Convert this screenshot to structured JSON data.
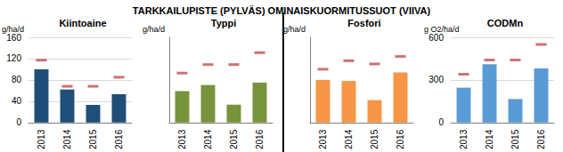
{
  "title": "TARKKAILUPISTE (PYLVÄS) OMINAISKUORMITUSSUOT (VIIVA)",
  "chart_data": [
    {
      "type": "bar",
      "title": "Kiintoaine",
      "ylabel": "g/ha/d",
      "categories": [
        "2013",
        "2014",
        "2015",
        "2016"
      ],
      "series": [
        {
          "type": "bar",
          "color": "#1f4e79",
          "values": [
            100,
            62,
            33,
            53
          ]
        },
        {
          "type": "scatter",
          "marker": "dash",
          "color": "#c0504d",
          "values": [
            117,
            68,
            68,
            85
          ]
        }
      ],
      "ylim": [
        0,
        160
      ],
      "yticks": [
        0,
        40,
        80,
        120,
        160
      ],
      "grid": true
    },
    {
      "type": "bar",
      "title": "Typpi",
      "ylabel": "g/ha/d",
      "categories": [
        "2013",
        "2014",
        "2015",
        "2016"
      ],
      "series": [
        {
          "type": "bar",
          "color": "#77933c",
          "values": [
            9.2,
            11,
            5.2,
            11.7
          ]
        },
        {
          "type": "scatter",
          "marker": "dash",
          "color": "#c0504d",
          "values": [
            14.5,
            17,
            17,
            20.5
          ]
        }
      ],
      "ylim": [
        0,
        25
      ],
      "grid": false,
      "tick_labels": "x"
    },
    {
      "type": "bar",
      "title": "Fosfori",
      "ylabel": "g/ha/d",
      "categories": [
        "2013",
        "2014",
        "2015",
        "2016"
      ],
      "series": [
        {
          "type": "bar",
          "color": "#f79646",
          "values": [
            0.4,
            0.39,
            0.21,
            0.47
          ]
        },
        {
          "type": "scatter",
          "marker": "dash",
          "color": "#c0504d",
          "values": [
            0.5,
            0.58,
            0.55,
            0.62
          ]
        }
      ],
      "ylim": [
        0,
        0.8
      ],
      "grid": false,
      "tick_labels": "x"
    },
    {
      "type": "bar",
      "title": "CODMn",
      "ylabel": "g O2/ha/d",
      "categories": [
        "2013",
        "2014",
        "2015",
        "2016"
      ],
      "series": [
        {
          "type": "bar",
          "color": "#5b9bd5",
          "values": [
            245,
            410,
            165,
            380
          ]
        },
        {
          "type": "scatter",
          "marker": "dash",
          "color": "#c0504d",
          "values": [
            340,
            440,
            440,
            550
          ]
        }
      ],
      "ylim": [
        0,
        600
      ],
      "yticks": [
        0,
        300,
        600
      ],
      "grid": true
    }
  ]
}
